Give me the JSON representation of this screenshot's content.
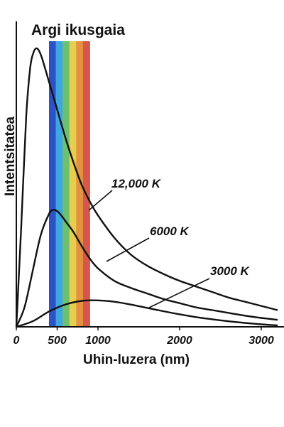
{
  "chart_data": {
    "type": "line",
    "title": "Argi ikusgaia",
    "xlabel": "Uhin-luzera (nm)",
    "ylabel": "Intentsitatea",
    "xlim": [
      0,
      3200
    ],
    "ylim": [
      0,
      1
    ],
    "x_ticks": [
      0,
      500,
      1000,
      2000,
      3000
    ],
    "x_tick_labels": [
      "0",
      "500",
      "1000",
      "2000",
      "3000"
    ],
    "visible_spectrum": {
      "range_nm": [
        400,
        900
      ],
      "bands": [
        "#2d52c8",
        "#3ea7df",
        "#6cc070",
        "#e6cf4e",
        "#e3923f",
        "#d7584a"
      ]
    },
    "series": [
      {
        "name": "12,000 K",
        "x": [
          0,
          60,
          120,
          170,
          210,
          245,
          280,
          320,
          400,
          500,
          600,
          700,
          800,
          900,
          1000,
          1200,
          1400,
          1600,
          1800,
          2000,
          2200,
          2400,
          2600,
          2800,
          3000,
          3200
        ],
        "y": [
          0,
          0.36,
          0.75,
          0.93,
          0.985,
          1.0,
          0.99,
          0.96,
          0.88,
          0.78,
          0.68,
          0.59,
          0.51,
          0.45,
          0.4,
          0.32,
          0.26,
          0.22,
          0.19,
          0.165,
          0.145,
          0.125,
          0.105,
          0.09,
          0.075,
          0.06
        ]
      },
      {
        "name": "6000 K",
        "x": [
          0,
          100,
          200,
          300,
          400,
          450,
          500,
          550,
          600,
          700,
          800,
          900,
          1000,
          1200,
          1400,
          1600,
          1800,
          2000,
          2200,
          2400,
          2600,
          2800,
          3000,
          3200
        ],
        "y": [
          0,
          0.07,
          0.2,
          0.33,
          0.405,
          0.42,
          0.415,
          0.4,
          0.38,
          0.34,
          0.29,
          0.245,
          0.21,
          0.165,
          0.14,
          0.12,
          0.1,
          0.085,
          0.07,
          0.06,
          0.05,
          0.04,
          0.032,
          0.025
        ]
      },
      {
        "name": "3000 K",
        "x": [
          0,
          200,
          400,
          600,
          800,
          1000,
          1200,
          1400,
          1600,
          1800,
          2000,
          2200,
          2400,
          2600,
          2800,
          3000,
          3200
        ],
        "y": [
          0,
          0.02,
          0.055,
          0.08,
          0.093,
          0.095,
          0.09,
          0.08,
          0.068,
          0.056,
          0.045,
          0.035,
          0.027,
          0.02,
          0.014,
          0.009,
          0.005
        ]
      }
    ],
    "annotations": [
      "12,000 K",
      "6000 K",
      "3000 K"
    ],
    "grid": false
  }
}
